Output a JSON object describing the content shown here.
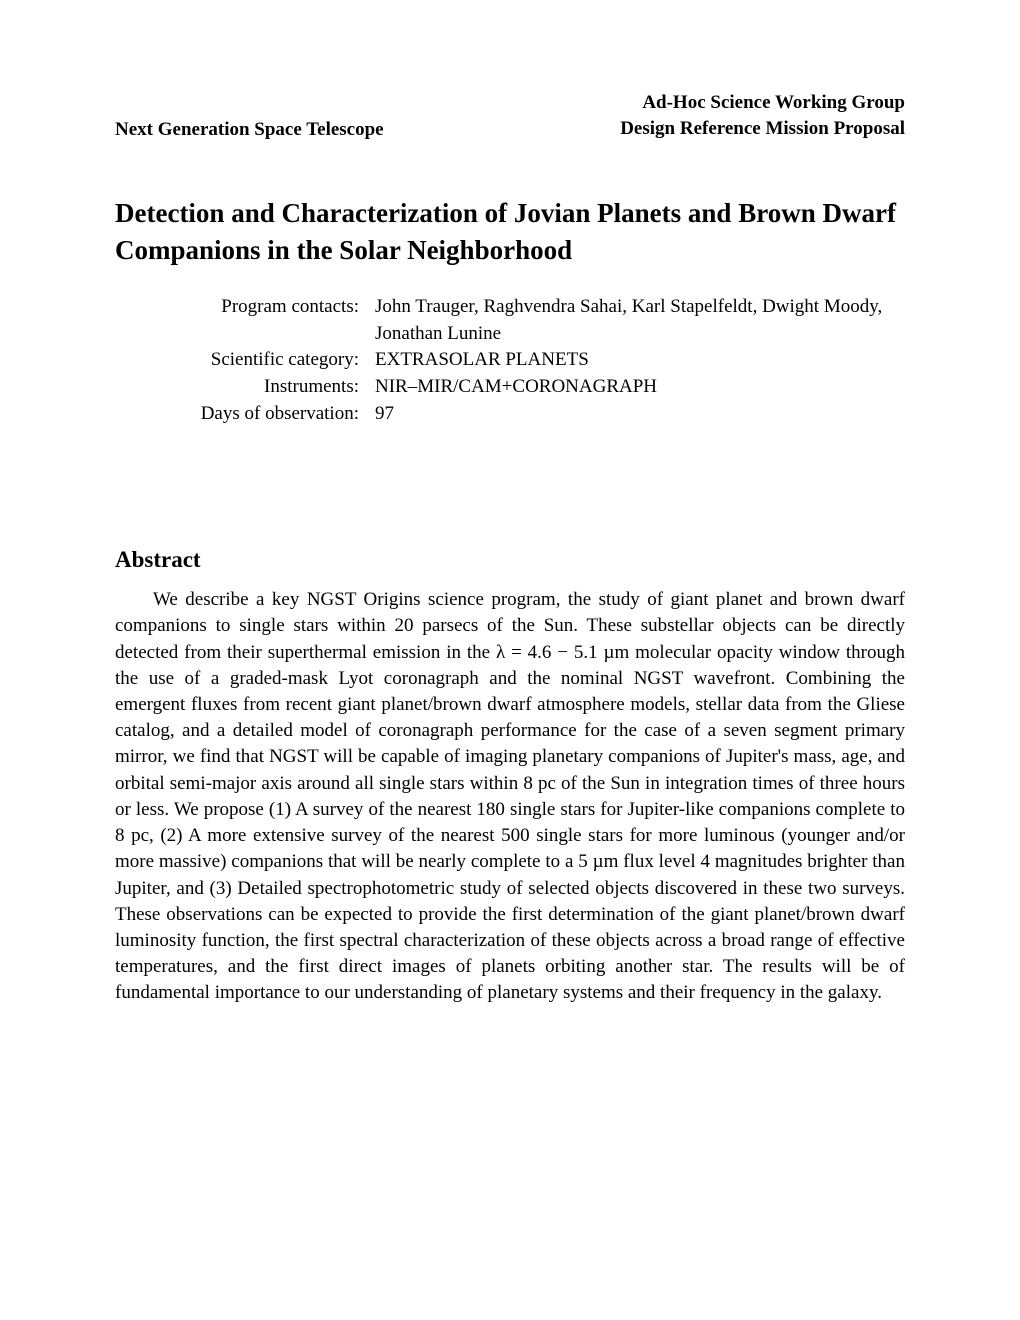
{
  "header": {
    "left": "Next Generation Space Telescope",
    "right_line1": "Ad-Hoc Science Working Group",
    "right_line2": "Design Reference Mission Proposal"
  },
  "title": "Detection and Characterization of Jovian Planets and Brown Dwarf Companions in the Solar Neighborhood",
  "meta": {
    "contacts_label": "Program contacts:",
    "contacts_value": "John Trauger, Raghvendra Sahai, Karl Stapelfeldt, Dwight Moody, Jonathan Lunine",
    "category_label": "Scientific category:",
    "category_value": "EXTRASOLAR PLANETS",
    "instruments_label": "Instruments:",
    "instruments_value": "NIR–MIR/CAM+CORONAGRAPH",
    "days_label": "Days of observation:",
    "days_value": "97"
  },
  "abstract": {
    "heading": "Abstract",
    "body": "We describe a key NGST Origins science program, the study of giant planet and brown dwarf companions to single stars within 20 parsecs of the Sun. These substellar objects can be directly detected from their superthermal emission in the λ = 4.6 − 5.1 µm molecular opacity window through the use of a graded-mask Lyot coronagraph and the nominal NGST wavefront. Combining the emergent fluxes from recent giant planet/brown dwarf atmosphere models, stellar data from the Gliese catalog, and a detailed model of coronagraph performance for the case of a seven segment primary mirror, we find that NGST will be capable of imaging planetary companions of Jupiter's mass, age, and orbital semi-major axis around all single stars within 8 pc of the Sun in integration times of three hours or less. We propose (1) A survey of the nearest 180 single stars for Jupiter-like companions complete to 8 pc, (2) A more extensive survey of the nearest 500 single stars for more luminous (younger and/or more massive) companions that will be nearly complete to a 5 µm flux level 4 magnitudes brighter than Jupiter, and (3) Detailed spectrophotometric study of selected objects discovered in these two surveys. These observations can be expected to provide the first determination of the giant planet/brown dwarf luminosity function, the first spectral characterization of these objects across a broad range of effective temperatures, and the first direct images of planets orbiting another star. The results will be of fundamental importance to our understanding of planetary systems and their frequency in the galaxy."
  }
}
